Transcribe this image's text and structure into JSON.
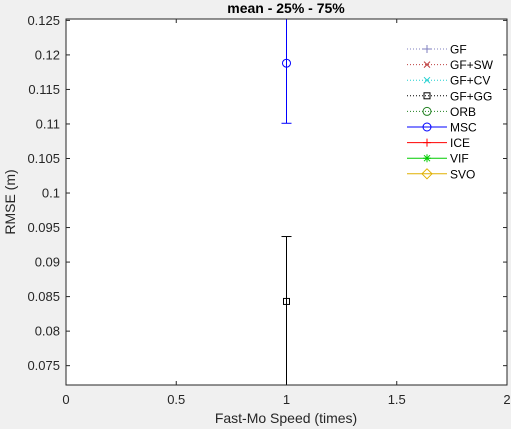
{
  "chart_data": {
    "type": "scatter",
    "title": "mean - 25% - 75%",
    "xlabel": "Fast-Mo Speed (times)",
    "ylabel": "RMSE (m)",
    "xlim": [
      0,
      2
    ],
    "ylim": [
      0.0722,
      0.1252
    ],
    "xticks": [
      0,
      0.5,
      1,
      1.5,
      2
    ],
    "xtick_labels": [
      "0",
      "0.5",
      "1",
      "1.5",
      "2"
    ],
    "yticks": [
      0.075,
      0.08,
      0.085,
      0.09,
      0.095,
      0.1,
      0.105,
      0.11,
      0.115,
      0.12,
      0.125
    ],
    "ytick_labels": [
      "0.075",
      "0.08",
      "0.085",
      "0.09",
      "0.095",
      "0.1",
      "0.105",
      "0.11",
      "0.115",
      "0.12",
      "0.125"
    ],
    "grid": false,
    "legend_position": "top-right",
    "series": [
      {
        "name": "GF",
        "color": "#7f7fbf",
        "linestyle": "dotted",
        "marker": "plus",
        "points": []
      },
      {
        "name": "GF+SW",
        "color": "#bf4040",
        "linestyle": "dotted",
        "marker": "x",
        "points": []
      },
      {
        "name": "GF+CV",
        "color": "#20d0d0",
        "linestyle": "dotted",
        "marker": "x",
        "points": []
      },
      {
        "name": "GF+GG",
        "color": "#000000",
        "linestyle": "dotted",
        "marker": "square",
        "points": [
          {
            "x": 1,
            "y": 0.0843,
            "lower": 0.0722,
            "upper": 0.0937
          }
        ]
      },
      {
        "name": "ORB",
        "color": "#208020",
        "linestyle": "dotted",
        "marker": "circle",
        "points": []
      },
      {
        "name": "MSC",
        "color": "#0000ff",
        "linestyle": "solid",
        "marker": "circle",
        "points": [
          {
            "x": 1,
            "y": 0.1188,
            "lower": 0.1101,
            "upper": 0.1252
          }
        ]
      },
      {
        "name": "ICE",
        "color": "#ff0000",
        "linestyle": "solid",
        "marker": "plus",
        "points": []
      },
      {
        "name": "VIF",
        "color": "#00cc00",
        "linestyle": "solid",
        "marker": "star",
        "points": []
      },
      {
        "name": "SVO",
        "color": "#e0b000",
        "linestyle": "solid",
        "marker": "diamond",
        "points": []
      }
    ]
  }
}
